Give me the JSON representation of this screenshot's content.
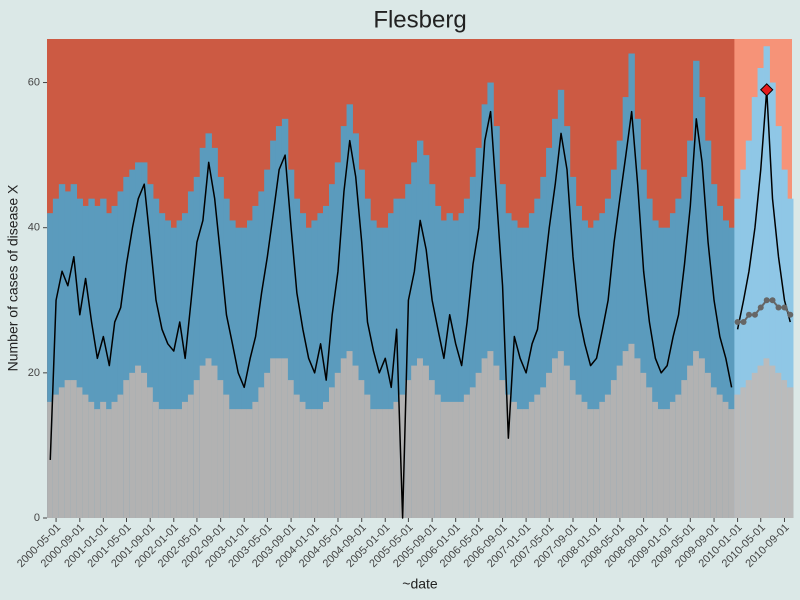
{
  "chart_data": {
    "type": "surveillance",
    "title": "Flesberg",
    "xlabel": "~date",
    "ylabel": "Number of cases of disease X",
    "xlim": [
      "2000-03-15",
      "2010-10-10"
    ],
    "ylim": [
      0,
      66
    ],
    "yticks": [
      0,
      20,
      40,
      60
    ],
    "xticks": [
      "2000-05-01",
      "2000-09-01",
      "2001-01-01",
      "2001-05-01",
      "2001-09-01",
      "2002-01-01",
      "2002-05-01",
      "2002-09-01",
      "2003-01-01",
      "2003-05-01",
      "2003-09-01",
      "2004-01-01",
      "2004-05-01",
      "2004-09-01",
      "2005-01-01",
      "2005-05-01",
      "2005-09-01",
      "2006-01-01",
      "2006-05-01",
      "2006-09-01",
      "2007-01-01",
      "2007-05-01",
      "2007-09-01",
      "2008-01-01",
      "2008-05-01",
      "2008-09-01",
      "2009-01-01",
      "2009-05-01",
      "2009-09-01",
      "2010-01-01",
      "2010-05-01",
      "2010-09-01"
    ],
    "x": [
      "2000-04-01",
      "2000-05-01",
      "2000-06-01",
      "2000-07-01",
      "2000-08-01",
      "2000-09-01",
      "2000-10-01",
      "2000-11-01",
      "2000-12-01",
      "2001-01-01",
      "2001-02-01",
      "2001-03-01",
      "2001-04-01",
      "2001-05-01",
      "2001-06-01",
      "2001-07-01",
      "2001-08-01",
      "2001-09-01",
      "2001-10-01",
      "2001-11-01",
      "2001-12-01",
      "2002-01-01",
      "2002-02-01",
      "2002-03-01",
      "2002-04-01",
      "2002-05-01",
      "2002-06-01",
      "2002-07-01",
      "2002-08-01",
      "2002-09-01",
      "2002-10-01",
      "2002-11-01",
      "2002-12-01",
      "2003-01-01",
      "2003-02-01",
      "2003-03-01",
      "2003-04-01",
      "2003-05-01",
      "2003-06-01",
      "2003-07-01",
      "2003-08-01",
      "2003-09-01",
      "2003-10-01",
      "2003-11-01",
      "2003-12-01",
      "2004-01-01",
      "2004-02-01",
      "2004-03-01",
      "2004-04-01",
      "2004-05-01",
      "2004-06-01",
      "2004-07-01",
      "2004-08-01",
      "2004-09-01",
      "2004-10-01",
      "2004-11-01",
      "2004-12-01",
      "2005-01-01",
      "2005-02-01",
      "2005-03-01",
      "2005-04-01",
      "2005-05-01",
      "2005-06-01",
      "2005-07-01",
      "2005-08-01",
      "2005-09-01",
      "2005-10-01",
      "2005-11-01",
      "2005-12-01",
      "2006-01-01",
      "2006-02-01",
      "2006-03-01",
      "2006-04-01",
      "2006-05-01",
      "2006-06-01",
      "2006-07-01",
      "2006-08-01",
      "2006-09-01",
      "2006-10-01",
      "2006-11-01",
      "2006-12-01",
      "2007-01-01",
      "2007-02-01",
      "2007-03-01",
      "2007-04-01",
      "2007-05-01",
      "2007-06-01",
      "2007-07-01",
      "2007-08-01",
      "2007-09-01",
      "2007-10-01",
      "2007-11-01",
      "2007-12-01",
      "2008-01-01",
      "2008-02-01",
      "2008-03-01",
      "2008-04-01",
      "2008-05-01",
      "2008-06-01",
      "2008-07-01",
      "2008-08-01",
      "2008-09-01",
      "2008-10-01",
      "2008-11-01",
      "2008-12-01",
      "2009-01-01",
      "2009-02-01",
      "2009-03-01",
      "2009-04-01",
      "2009-05-01",
      "2009-06-01",
      "2009-07-01",
      "2009-08-01",
      "2009-09-01",
      "2009-10-01",
      "2009-11-01",
      "2009-12-01"
    ],
    "panel_color": "#cc5a43",
    "series": [
      {
        "color": "#000000",
        "values": [
          8,
          30,
          34,
          32,
          36,
          28,
          33,
          27,
          22,
          25,
          21,
          27,
          29,
          35,
          40,
          44,
          46,
          38,
          30,
          26,
          24,
          23,
          27,
          22,
          30,
          38,
          41,
          49,
          44,
          36,
          28,
          24,
          20,
          18,
          22,
          25,
          31,
          36,
          42,
          48,
          50,
          40,
          31,
          26,
          22,
          20,
          24,
          19,
          28,
          34,
          45,
          52,
          47,
          38,
          27,
          23,
          20,
          22,
          18,
          26,
          0,
          30,
          34,
          41,
          37,
          30,
          26,
          22,
          28,
          24,
          21,
          27,
          35,
          40,
          52,
          56,
          44,
          32,
          11,
          25,
          22,
          20,
          24,
          26,
          33,
          40,
          46,
          53,
          48,
          36,
          28,
          24,
          21,
          22,
          26,
          30,
          38,
          44,
          50,
          56,
          46,
          34,
          27,
          22,
          20,
          21,
          25,
          28,
          35,
          43,
          55,
          49,
          38,
          30,
          25,
          22,
          18
        ]
      },
      {
        "color": "#b2b2b2",
        "values": [
          16,
          17,
          18,
          19,
          19,
          18,
          17,
          16,
          15,
          16,
          15,
          16,
          17,
          19,
          20,
          21,
          20,
          18,
          16,
          15,
          15,
          15,
          15,
          16,
          17,
          19,
          21,
          22,
          21,
          19,
          17,
          15,
          15,
          15,
          15,
          16,
          18,
          20,
          22,
          22,
          22,
          19,
          17,
          16,
          15,
          15,
          15,
          16,
          18,
          20,
          22,
          23,
          21,
          19,
          17,
          15,
          15,
          15,
          15,
          16,
          17,
          19,
          21,
          22,
          21,
          19,
          17,
          16,
          16,
          16,
          16,
          17,
          18,
          20,
          22,
          23,
          21,
          19,
          17,
          16,
          15,
          15,
          16,
          17,
          18,
          20,
          22,
          23,
          21,
          19,
          17,
          16,
          15,
          15,
          16,
          17,
          19,
          21,
          23,
          24,
          22,
          20,
          18,
          16,
          15,
          15,
          16,
          17,
          19,
          21,
          23,
          22,
          20,
          18,
          17,
          16,
          15
        ]
      },
      {
        "color": "#5b9bbd",
        "values": [
          42,
          44,
          46,
          45,
          46,
          44,
          43,
          44,
          43,
          44,
          42,
          43,
          45,
          47,
          48,
          49,
          49,
          46,
          44,
          42,
          41,
          40,
          41,
          42,
          45,
          47,
          51,
          53,
          51,
          47,
          44,
          41,
          40,
          40,
          41,
          43,
          45,
          48,
          52,
          54,
          55,
          48,
          44,
          42,
          40,
          41,
          42,
          43,
          46,
          49,
          54,
          57,
          53,
          48,
          44,
          41,
          40,
          40,
          42,
          44,
          44,
          46,
          49,
          52,
          50,
          46,
          43,
          41,
          42,
          41,
          42,
          44,
          47,
          51,
          57,
          60,
          54,
          46,
          42,
          41,
          40,
          40,
          42,
          44,
          47,
          51,
          55,
          59,
          54,
          47,
          43,
          41,
          40,
          41,
          42,
          44,
          48,
          52,
          58,
          64,
          55,
          48,
          44,
          41,
          40,
          40,
          42,
          44,
          47,
          52,
          63,
          58,
          52,
          46,
          43,
          41,
          40
        ]
      }
    ],
    "forecast": {
      "x": [
        "2010-01-01",
        "2010-02-01",
        "2010-03-01",
        "2010-04-01",
        "2010-05-01",
        "2010-06-01",
        "2010-07-01",
        "2010-08-01",
        "2010-09-01",
        "2010-10-01"
      ],
      "panel_color": "#f69378",
      "series": [
        {
          "color": "#000000",
          "values": [
            26,
            30,
            34,
            40,
            48,
            59,
            44,
            36,
            30,
            27
          ]
        },
        {
          "color": "#bbbbbb",
          "values": [
            17,
            18,
            19,
            20,
            21,
            22,
            21,
            20,
            19,
            18
          ]
        },
        {
          "color": "#8fc7e6",
          "values": [
            44,
            48,
            52,
            58,
            62,
            65,
            60,
            54,
            48,
            44
          ]
        },
        {
          "color": "#666666",
          "values": [
            27,
            27,
            28,
            28,
            29,
            30,
            30,
            29,
            29,
            28
          ]
        }
      ]
    },
    "highlight": {
      "x": "2010-06-01",
      "y": 59,
      "color": "#e41a1c"
    }
  }
}
